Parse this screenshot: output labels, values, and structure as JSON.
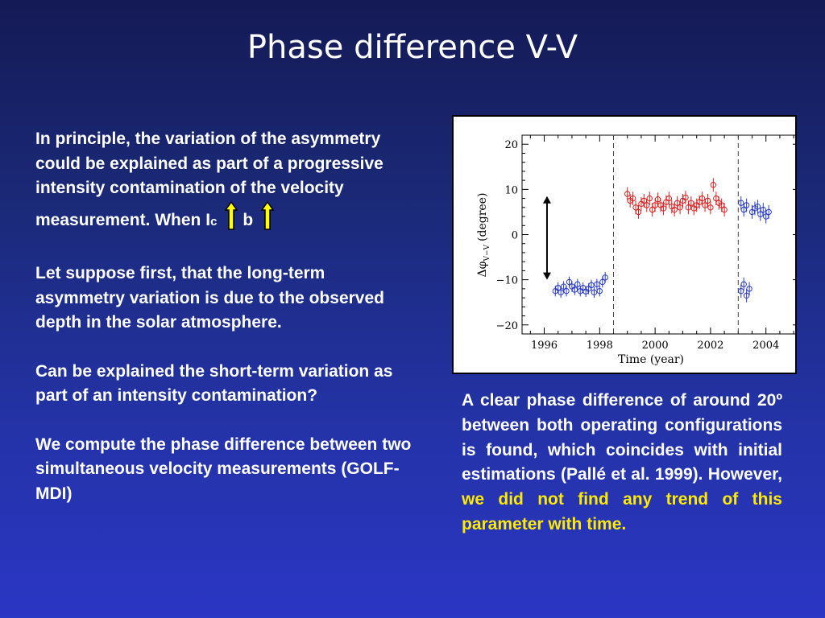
{
  "slide": {
    "title": "Phase difference V-V"
  },
  "left": {
    "p1_main": "In principle, the variation of the asymmetry could be explained as part of a progressive intensity contamination of the velocity measurement. When I",
    "p1_sub": "c",
    "p1_b": "b",
    "p2": "Let suppose first, that the long-term asymmetry variation is due to the observed depth in the solar atmosphere.",
    "p3": "Can be explained the short-term variation as part of an intensity contamination?",
    "p4": "We compute the phase difference between two simultaneous velocity measurements (GOLF-MDI)"
  },
  "right": {
    "text_plain": "A clear phase difference of around 20º between both operating configurations is found, which coincides with initial estimations (Pallé et al. 1999). However, ",
    "text_highlight": "we did not find any trend of this parameter with time."
  },
  "colors": {
    "highlight": "#ffea00",
    "arrow_fill": "#ffff00",
    "series_blue": "#2a3bd0",
    "series_red": "#e02020"
  },
  "icons": {
    "up_arrow": "up-arrow-icon"
  },
  "chart_data": {
    "type": "scatter",
    "xlabel": "Time (year)",
    "ylabel": "Δφ_{V−V} (degree)",
    "ylabel_main": "Δφ",
    "ylabel_sub": "V−V",
    "ylabel_unit": "(degree)",
    "xlim": [
      1995.2,
      2005.2
    ],
    "ylim": [
      -22,
      22
    ],
    "xticks": [
      1996,
      1998,
      2000,
      2002,
      2004
    ],
    "xtick_labels": [
      "1996",
      "1998",
      "2000",
      "2002",
      "2004"
    ],
    "yticks": [
      20,
      10,
      0,
      -10,
      -20
    ],
    "ytick_labels": [
      "20",
      "10",
      "0",
      "−10",
      "−20"
    ],
    "vlines": [
      1998.5,
      2003.0
    ],
    "annotation": "double-headed arrow from -10 to 8.5 at x=1996.1",
    "arrow": {
      "x": 1996.1,
      "y_from": -10,
      "y_to": 8.5
    },
    "series": [
      {
        "color": "blue",
        "x": [
          1996.4,
          1996.5,
          1996.6,
          1996.7,
          1996.8,
          1996.9,
          1997.0,
          1997.1,
          1997.2,
          1997.3,
          1997.4,
          1997.5,
          1997.6,
          1997.7,
          1997.8,
          1997.9,
          1998.0,
          1998.1,
          1998.2
        ],
        "y": [
          -12.5,
          -11.8,
          -12.8,
          -11.5,
          -12.5,
          -10.5,
          -11.5,
          -12.2,
          -11.0,
          -12.5,
          -11.8,
          -12.6,
          -12.0,
          -11.2,
          -12.8,
          -11.0,
          -12.5,
          -10.5,
          -9.5
        ],
        "yerr": 1.2
      },
      {
        "color": "red",
        "x": [
          1999.0,
          1999.1,
          1999.2,
          1999.3,
          1999.4,
          1999.5,
          1999.6,
          1999.7,
          1999.8,
          1999.9,
          2000.0,
          2000.1,
          2000.2,
          2000.3,
          2000.4,
          2000.5,
          2000.6,
          2000.7,
          2000.8,
          2000.9,
          2001.0,
          2001.1,
          2001.2,
          2001.3,
          2001.4,
          2001.5,
          2001.6,
          2001.7,
          2001.8,
          2001.9,
          2002.0,
          2002.1,
          2002.2,
          2002.3,
          2002.4,
          2002.5
        ],
        "y": [
          9.0,
          7.5,
          8.0,
          6.0,
          5.0,
          6.8,
          7.5,
          6.5,
          8.0,
          5.5,
          6.5,
          7.8,
          6.5,
          5.8,
          7.2,
          8.0,
          6.2,
          5.5,
          7.0,
          6.0,
          7.5,
          8.2,
          6.0,
          7.0,
          5.8,
          6.5,
          7.2,
          8.0,
          6.5,
          7.5,
          6.0,
          11.0,
          8.0,
          7.0,
          6.5,
          5.5
        ],
        "yerr": 1.5
      },
      {
        "color": "blue",
        "x": [
          2003.1,
          2003.2,
          2003.3,
          2003.4,
          2003.1,
          2003.2,
          2003.3,
          2003.5,
          2003.6,
          2003.7,
          2003.8,
          2003.9,
          2004.0,
          2004.1
        ],
        "y": [
          -12.5,
          -11.0,
          -13.5,
          -12.0,
          7.0,
          5.5,
          6.5,
          5.0,
          5.8,
          6.2,
          4.5,
          5.5,
          4.0,
          5.0
        ],
        "yerr": 1.5
      }
    ]
  }
}
